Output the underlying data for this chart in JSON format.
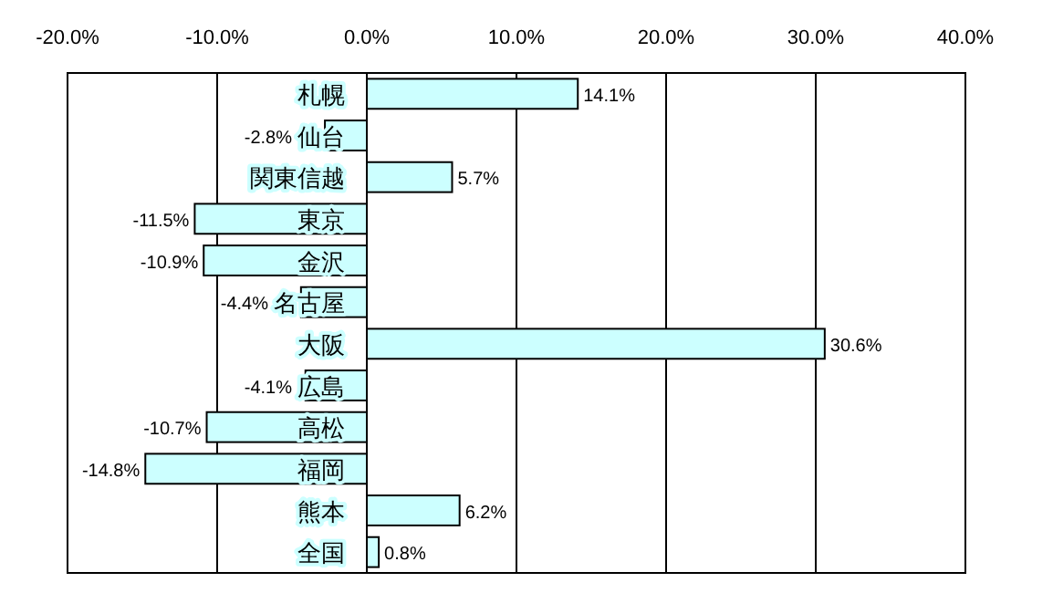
{
  "chart_data": {
    "type": "bar",
    "orientation": "horizontal",
    "categories": [
      "札幌",
      "仙台",
      "関東信越",
      "東京",
      "金沢",
      "名古屋",
      "大阪",
      "広島",
      "高松",
      "福岡",
      "熊本",
      "全国"
    ],
    "values": [
      14.1,
      -2.8,
      5.7,
      -11.5,
      -10.9,
      -4.4,
      30.6,
      -4.1,
      -10.7,
      -14.8,
      6.2,
      0.8
    ],
    "value_labels": [
      "14.1%",
      "-2.8%",
      "5.7%",
      "-11.5%",
      "-10.9%",
      "-4.4%",
      "30.6%",
      "-4.1%",
      "-10.7%",
      "-14.8%",
      "6.2%",
      "0.8%"
    ],
    "color": "#ccffff",
    "xlim": [
      -20,
      40
    ],
    "xticks": [
      {
        "value": -20,
        "label": "-20.0%"
      },
      {
        "value": -10,
        "label": "-10.0%"
      },
      {
        "value": 0,
        "label": "0.0%"
      },
      {
        "value": 10,
        "label": "10.0%"
      },
      {
        "value": 20,
        "label": "20.0%"
      },
      {
        "value": 30,
        "label": "30.0%"
      },
      {
        "value": 40,
        "label": "40.0%"
      }
    ],
    "grid": "x"
  }
}
